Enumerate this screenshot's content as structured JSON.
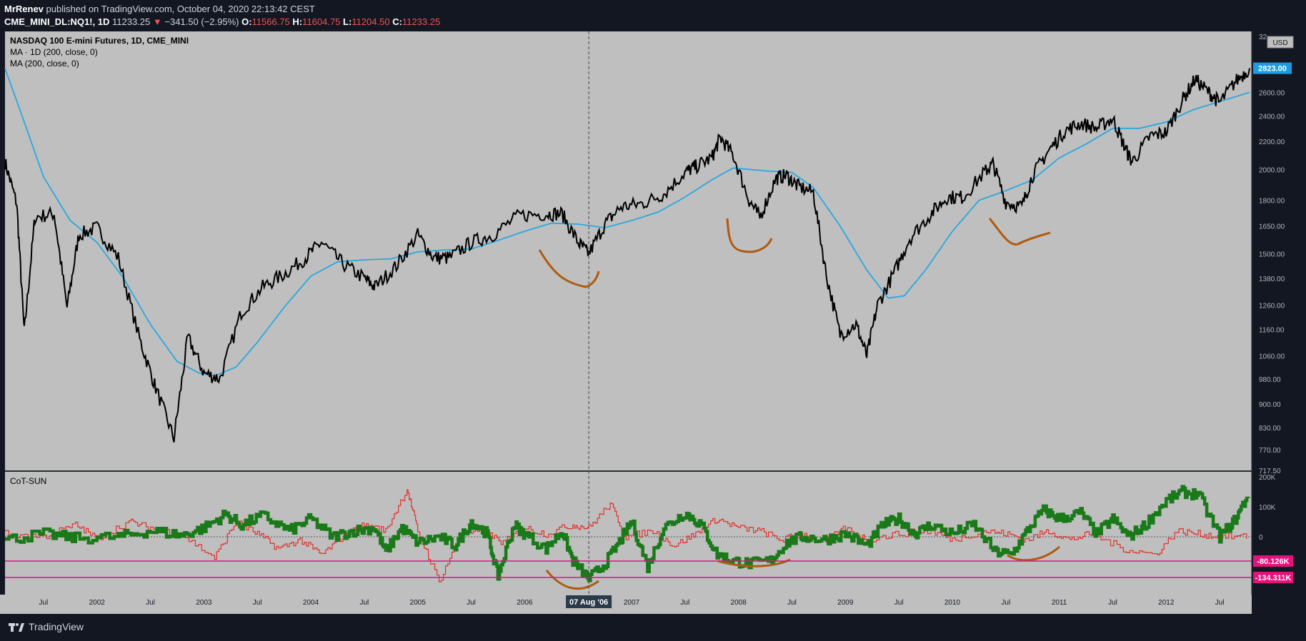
{
  "header": {
    "publisher": "MrRenev",
    "published_text": "published on TradingView.com, October 04, 2020 22:13:42 CEST",
    "symbol": "CME_MINI_DL:NQ1!, 1D",
    "last": "11233.25",
    "change_arrow": "▼",
    "change": "−341.50 (−2.95%)",
    "o_label": "O:",
    "o_value": "11566.75",
    "h_label": "H:",
    "h_value": "11604.75",
    "l_label": "L:",
    "l_value": "11204.50",
    "c_label": "C:",
    "c_value": "11233.25"
  },
  "legend": {
    "title": "NASDAQ 100 E-mini Futures, 1D, CME_MINI",
    "ma1": "MA · 1D (200, close, 0)",
    "ma2": "MA (200, close, 0)"
  },
  "indicator": {
    "name": "CoT-SUN"
  },
  "price_axis": {
    "unit": "USD",
    "current_label": "2823.00",
    "ticks": [
      {
        "v": 717.5,
        "t": "717.50"
      },
      {
        "v": 770,
        "t": "770.00"
      },
      {
        "v": 830,
        "t": "830.00"
      },
      {
        "v": 900,
        "t": "900.00"
      },
      {
        "v": 980,
        "t": "980.00"
      },
      {
        "v": 1060,
        "t": "1060.00"
      },
      {
        "v": 1160,
        "t": "1160.00"
      },
      {
        "v": 1260,
        "t": "1260.00"
      },
      {
        "v": 1380,
        "t": "1380.00"
      },
      {
        "v": 1500,
        "t": "1500.00"
      },
      {
        "v": 1650,
        "t": "1650.00"
      },
      {
        "v": 1800,
        "t": "1800.00"
      },
      {
        "v": 2000,
        "t": "2000.00"
      },
      {
        "v": 2200,
        "t": "2200.00"
      },
      {
        "v": 2400,
        "t": "2400.00"
      },
      {
        "v": 2600,
        "t": "2600.00"
      },
      {
        "v": 3200,
        "t": "32"
      }
    ]
  },
  "cot_axis": {
    "ticks": [
      {
        "v": 200,
        "t": "200K"
      },
      {
        "v": 100,
        "t": "100K"
      },
      {
        "v": 0,
        "t": "0"
      }
    ],
    "badge1": "-80.126K",
    "badge2": "-134.311K"
  },
  "time_axis": {
    "ticks": [
      {
        "x": 2001.5,
        "t": "Jul"
      },
      {
        "x": 2002,
        "t": "2002"
      },
      {
        "x": 2002.5,
        "t": "Jul"
      },
      {
        "x": 2003,
        "t": "2003"
      },
      {
        "x": 2003.5,
        "t": "Jul"
      },
      {
        "x": 2004,
        "t": "2004"
      },
      {
        "x": 2004.5,
        "t": "Jul"
      },
      {
        "x": 2005,
        "t": "2005"
      },
      {
        "x": 2005.5,
        "t": "Jul"
      },
      {
        "x": 2006,
        "t": "2006"
      },
      {
        "x": 2007,
        "t": "2007"
      },
      {
        "x": 2007.5,
        "t": "Jul"
      },
      {
        "x": 2008,
        "t": "2008"
      },
      {
        "x": 2008.5,
        "t": "Jul"
      },
      {
        "x": 2009,
        "t": "2009"
      },
      {
        "x": 2009.5,
        "t": "Jul"
      },
      {
        "x": 2010,
        "t": "2010"
      },
      {
        "x": 2010.5,
        "t": "Jul"
      },
      {
        "x": 2011,
        "t": "2011"
      },
      {
        "x": 2011.5,
        "t": "Jul"
      },
      {
        "x": 2012,
        "t": "2012"
      },
      {
        "x": 2012.5,
        "t": "Jul"
      }
    ],
    "crosshair_x": 2006.6,
    "crosshair_label": "07 Aug '06"
  },
  "chart_data": {
    "type": "line",
    "title": "NASDAQ 100 E-mini Futures, 1D, CME_MINI",
    "x_range": [
      2001.14,
      2012.8
    ],
    "y_scale": "log",
    "y_range": [
      717.5,
      3200
    ],
    "series": [
      {
        "name": "NASDAQ 100 E-mini Futures",
        "color": "#000000",
        "points": [
          [
            2001.14,
            2050
          ],
          [
            2001.25,
            1780
          ],
          [
            2001.32,
            1150
          ],
          [
            2001.42,
            1700
          ],
          [
            2001.6,
            1720
          ],
          [
            2001.72,
            1250
          ],
          [
            2001.83,
            1600
          ],
          [
            2002.0,
            1640
          ],
          [
            2002.2,
            1480
          ],
          [
            2002.4,
            1120
          ],
          [
            2002.55,
            950
          ],
          [
            2002.72,
            800
          ],
          [
            2002.85,
            1130
          ],
          [
            2003.0,
            1000
          ],
          [
            2003.15,
            980
          ],
          [
            2003.35,
            1230
          ],
          [
            2003.55,
            1340
          ],
          [
            2003.75,
            1400
          ],
          [
            2003.95,
            1480
          ],
          [
            2004.1,
            1560
          ],
          [
            2004.3,
            1450
          ],
          [
            2004.5,
            1380
          ],
          [
            2004.6,
            1340
          ],
          [
            2004.8,
            1440
          ],
          [
            2005.0,
            1600
          ],
          [
            2005.15,
            1480
          ],
          [
            2005.3,
            1480
          ],
          [
            2005.5,
            1560
          ],
          [
            2005.7,
            1600
          ],
          [
            2005.95,
            1710
          ],
          [
            2006.2,
            1720
          ],
          [
            2006.35,
            1720
          ],
          [
            2006.5,
            1560
          ],
          [
            2006.6,
            1500
          ],
          [
            2006.75,
            1660
          ],
          [
            2006.9,
            1760
          ],
          [
            2007.1,
            1780
          ],
          [
            2007.3,
            1840
          ],
          [
            2007.5,
            1980
          ],
          [
            2007.6,
            2020
          ],
          [
            2007.75,
            2080
          ],
          [
            2007.83,
            2230
          ],
          [
            2007.95,
            2100
          ],
          [
            2008.1,
            1800
          ],
          [
            2008.2,
            1700
          ],
          [
            2008.35,
            1940
          ],
          [
            2008.45,
            1960
          ],
          [
            2008.55,
            1890
          ],
          [
            2008.7,
            1850
          ],
          [
            2008.82,
            1400
          ],
          [
            2008.95,
            1140
          ],
          [
            2009.1,
            1180
          ],
          [
            2009.2,
            1060
          ],
          [
            2009.3,
            1260
          ],
          [
            2009.45,
            1400
          ],
          [
            2009.6,
            1580
          ],
          [
            2009.8,
            1720
          ],
          [
            2009.95,
            1820
          ],
          [
            2010.1,
            1820
          ],
          [
            2010.3,
            1980
          ],
          [
            2010.38,
            2040
          ],
          [
            2010.5,
            1790
          ],
          [
            2010.65,
            1760
          ],
          [
            2010.75,
            1960
          ],
          [
            2010.9,
            2130
          ],
          [
            2011.05,
            2280
          ],
          [
            2011.2,
            2340
          ],
          [
            2011.35,
            2300
          ],
          [
            2011.5,
            2380
          ],
          [
            2011.6,
            2180
          ],
          [
            2011.68,
            2050
          ],
          [
            2011.85,
            2240
          ],
          [
            2012.0,
            2270
          ],
          [
            2012.15,
            2530
          ],
          [
            2012.27,
            2720
          ],
          [
            2012.4,
            2600
          ],
          [
            2012.5,
            2510
          ],
          [
            2012.65,
            2700
          ],
          [
            2012.78,
            2823
          ]
        ]
      },
      {
        "name": "MA (200, close, 0)",
        "color": "#29a8e0",
        "points": [
          [
            2001.14,
            2820
          ],
          [
            2001.3,
            2400
          ],
          [
            2001.5,
            1950
          ],
          [
            2001.75,
            1680
          ],
          [
            2002.0,
            1560
          ],
          [
            2002.25,
            1380
          ],
          [
            2002.5,
            1180
          ],
          [
            2002.75,
            1040
          ],
          [
            2002.95,
            1000
          ],
          [
            2003.1,
            990
          ],
          [
            2003.3,
            1020
          ],
          [
            2003.5,
            1110
          ],
          [
            2003.75,
            1250
          ],
          [
            2004.0,
            1390
          ],
          [
            2004.25,
            1460
          ],
          [
            2004.5,
            1470
          ],
          [
            2004.75,
            1475
          ],
          [
            2005.0,
            1510
          ],
          [
            2005.25,
            1520
          ],
          [
            2005.5,
            1525
          ],
          [
            2005.75,
            1570
          ],
          [
            2006.0,
            1620
          ],
          [
            2006.25,
            1665
          ],
          [
            2006.5,
            1660
          ],
          [
            2006.75,
            1640
          ],
          [
            2007.0,
            1680
          ],
          [
            2007.25,
            1730
          ],
          [
            2007.5,
            1820
          ],
          [
            2007.75,
            1930
          ],
          [
            2007.95,
            2010
          ],
          [
            2008.25,
            1990
          ],
          [
            2008.5,
            1980
          ],
          [
            2008.7,
            1880
          ],
          [
            2008.95,
            1650
          ],
          [
            2009.2,
            1420
          ],
          [
            2009.4,
            1290
          ],
          [
            2009.55,
            1300
          ],
          [
            2009.75,
            1420
          ],
          [
            2010.0,
            1620
          ],
          [
            2010.25,
            1800
          ],
          [
            2010.5,
            1860
          ],
          [
            2010.75,
            1930
          ],
          [
            2011.0,
            2080
          ],
          [
            2011.25,
            2180
          ],
          [
            2011.5,
            2300
          ],
          [
            2011.75,
            2300
          ],
          [
            2012.0,
            2350
          ],
          [
            2012.25,
            2450
          ],
          [
            2012.5,
            2520
          ],
          [
            2012.78,
            2600
          ]
        ]
      }
    ],
    "cot_series": [
      {
        "name": "CoT-SUN green",
        "color": "#1a7a1a",
        "points": [
          [
            2001.14,
            -10
          ],
          [
            2001.5,
            10
          ],
          [
            2001.8,
            -5
          ],
          [
            2002.2,
            0
          ],
          [
            2002.5,
            20
          ],
          [
            2002.8,
            5
          ],
          [
            2003.0,
            30
          ],
          [
            2003.2,
            75
          ],
          [
            2003.35,
            40
          ],
          [
            2003.55,
            70
          ],
          [
            2003.8,
            20
          ],
          [
            2004.0,
            60
          ],
          [
            2004.2,
            0
          ],
          [
            2004.4,
            20
          ],
          [
            2004.6,
            30
          ],
          [
            2004.7,
            -50
          ],
          [
            2004.85,
            30
          ],
          [
            2005.0,
            -20
          ],
          [
            2005.2,
            0
          ],
          [
            2005.35,
            -30
          ],
          [
            2005.5,
            50
          ],
          [
            2005.65,
            10
          ],
          [
            2005.75,
            -130
          ],
          [
            2005.9,
            40
          ],
          [
            2006.0,
            10
          ],
          [
            2006.2,
            -40
          ],
          [
            2006.35,
            20
          ],
          [
            2006.45,
            -80
          ],
          [
            2006.6,
            -140
          ],
          [
            2006.75,
            -90
          ],
          [
            2006.9,
            -10
          ],
          [
            2007.0,
            50
          ],
          [
            2007.15,
            -100
          ],
          [
            2007.3,
            30
          ],
          [
            2007.5,
            80
          ],
          [
            2007.65,
            40
          ],
          [
            2007.8,
            -60
          ],
          [
            2007.95,
            -80
          ],
          [
            2008.1,
            -90
          ],
          [
            2008.3,
            -80
          ],
          [
            2008.45,
            -20
          ],
          [
            2008.6,
            0
          ],
          [
            2008.8,
            -10
          ],
          [
            2009.0,
            10
          ],
          [
            2009.2,
            -30
          ],
          [
            2009.35,
            40
          ],
          [
            2009.5,
            60
          ],
          [
            2009.65,
            10
          ],
          [
            2009.8,
            40
          ],
          [
            2010.0,
            10
          ],
          [
            2010.2,
            40
          ],
          [
            2010.4,
            -50
          ],
          [
            2010.55,
            -60
          ],
          [
            2010.7,
            20
          ],
          [
            2010.85,
            90
          ],
          [
            2011.0,
            60
          ],
          [
            2011.2,
            80
          ],
          [
            2011.35,
            10
          ],
          [
            2011.5,
            60
          ],
          [
            2011.65,
            0
          ],
          [
            2011.8,
            40
          ],
          [
            2012.0,
            120
          ],
          [
            2012.15,
            150
          ],
          [
            2012.3,
            140
          ],
          [
            2012.5,
            0
          ],
          [
            2012.65,
            60
          ],
          [
            2012.78,
            150
          ]
        ]
      },
      {
        "name": "CoT-SUN red",
        "color": "#e0302a",
        "points": [
          [
            2001.14,
            10
          ],
          [
            2001.5,
            0
          ],
          [
            2001.8,
            40
          ],
          [
            2002.0,
            -5
          ],
          [
            2002.3,
            50
          ],
          [
            2002.5,
            30
          ],
          [
            2002.8,
            5
          ],
          [
            2003.1,
            -70
          ],
          [
            2003.3,
            50
          ],
          [
            2003.5,
            10
          ],
          [
            2003.7,
            -40
          ],
          [
            2003.9,
            -10
          ],
          [
            2004.1,
            -60
          ],
          [
            2004.3,
            0
          ],
          [
            2004.5,
            40
          ],
          [
            2004.7,
            20
          ],
          [
            2004.9,
            160
          ],
          [
            2005.0,
            20
          ],
          [
            2005.2,
            -150
          ],
          [
            2005.4,
            10
          ],
          [
            2005.6,
            20
          ],
          [
            2005.8,
            -20
          ],
          [
            2006.0,
            30
          ],
          [
            2006.2,
            10
          ],
          [
            2006.45,
            40
          ],
          [
            2006.6,
            30
          ],
          [
            2006.8,
            110
          ],
          [
            2006.95,
            0
          ],
          [
            2007.2,
            20
          ],
          [
            2007.4,
            -30
          ],
          [
            2007.6,
            10
          ],
          [
            2007.8,
            60
          ],
          [
            2008.0,
            30
          ],
          [
            2008.2,
            20
          ],
          [
            2008.4,
            -10
          ],
          [
            2008.6,
            10
          ],
          [
            2008.8,
            -20
          ],
          [
            2009.0,
            30
          ],
          [
            2009.2,
            -10
          ],
          [
            2009.5,
            10
          ],
          [
            2009.8,
            20
          ],
          [
            2010.0,
            -10
          ],
          [
            2010.3,
            20
          ],
          [
            2010.5,
            10
          ],
          [
            2010.7,
            -10
          ],
          [
            2010.9,
            20
          ],
          [
            2011.1,
            -10
          ],
          [
            2011.3,
            10
          ],
          [
            2011.6,
            -40
          ],
          [
            2011.9,
            -60
          ],
          [
            2012.1,
            20
          ],
          [
            2012.3,
            10
          ],
          [
            2012.5,
            0
          ],
          [
            2012.78,
            0
          ]
        ]
      }
    ]
  }
}
